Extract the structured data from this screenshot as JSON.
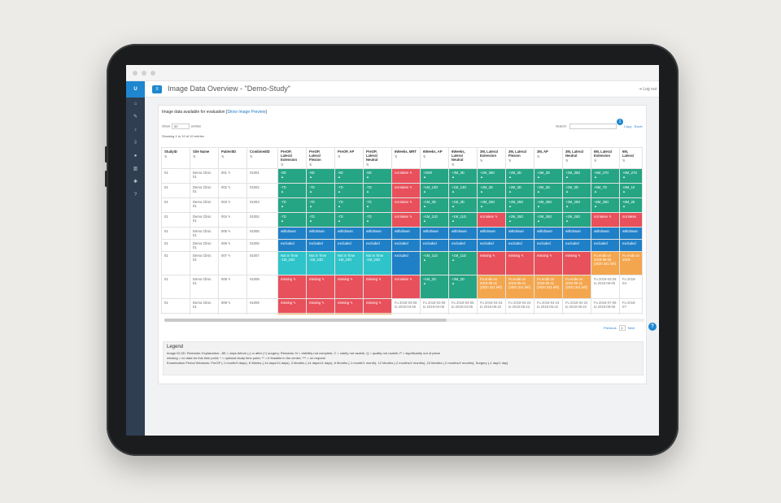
{
  "app": {
    "sidebar_brand": "U",
    "sidebar_icons": [
      "home-icon",
      "edit-icon",
      "bell-icon",
      "download-icon",
      "user-icon",
      "trash-icon",
      "settings-icon",
      "question-icon"
    ],
    "page_title": "Image Data Overview - \"Demo-Study\"",
    "logout_label": "Log out"
  },
  "card": {
    "heading": "Image data available for evaluation [",
    "heading_link": "Show Image Preview",
    "heading_end": "]",
    "show_label": "Show",
    "show_value": "50",
    "entries_label": "entries",
    "info": "Showing 1 to 10 of 10 entries",
    "search_label": "Search:",
    "export_copy": "Copy",
    "export_excel": "Excel",
    "badge": "1"
  },
  "table": {
    "columns": [
      "StudyID",
      "Site Name",
      "PatientID",
      "CombinedID",
      "PreOP, Lateral Extension",
      "PreOP, Lateral Flexion",
      "PreOP, AP",
      "PreOP, Lateral Neutral",
      "6Weeks, MRT",
      "6Weeks, AP",
      "6Weeks, Lateral Neutral",
      "3M, Lateral Extension",
      "3M, Lateral Flexion",
      "3M, AP",
      "3M, Lateral Neutral",
      "6M, Lateral Extension",
      "6M, Lateral"
    ],
    "rows": [
      {
        "study": "01",
        "site": "Demo Clinic 01",
        "patient": "001 ✎",
        "combined": "01001",
        "cells": [
          [
            "c-green",
            "-8D"
          ],
          [
            "c-green",
            "-8D"
          ],
          [
            "c-green",
            "-8D"
          ],
          [
            "c-green",
            "-8D"
          ],
          [
            "c-red",
            "not taken ✎"
          ],
          [
            "c-green",
            "+2W0"
          ],
          [
            "c-green",
            "+3M_3D"
          ],
          [
            "c-green",
            "+2M_36D"
          ],
          [
            "c-green",
            "+2M_3D"
          ],
          [
            "c-green",
            "+3M_3D"
          ],
          [
            "c-green",
            "+2M_36D"
          ],
          [
            "c-green",
            "+6M_27D"
          ],
          [
            "c-green",
            "+6M_27D"
          ]
        ]
      },
      {
        "study": "01",
        "site": "Demo Clinic 01",
        "patient": "002 ✎",
        "combined": "01002",
        "cells": [
          [
            "c-green",
            "-7D"
          ],
          [
            "c-green",
            "-7D"
          ],
          [
            "c-green",
            "-7D"
          ],
          [
            "c-green",
            "-7D"
          ],
          [
            "c-red",
            "not taken ✎"
          ],
          [
            "c-green",
            "+1M_13D"
          ],
          [
            "c-green",
            "+1M_13D"
          ],
          [
            "c-green",
            "+2M_3D"
          ],
          [
            "c-green",
            "+2M_3D"
          ],
          [
            "c-green",
            "+2M_3D"
          ],
          [
            "c-green",
            "+2M_3D"
          ],
          [
            "c-green",
            "+6M_7D"
          ],
          [
            "c-green",
            "+6M_10"
          ]
        ]
      },
      {
        "study": "01",
        "site": "Demo Clinic 01",
        "patient": "003 ✎",
        "combined": "01003",
        "cells": [
          [
            "c-green",
            "-7D"
          ],
          [
            "c-green",
            "-7D"
          ],
          [
            "c-green",
            "-7D"
          ],
          [
            "c-green",
            "-7D"
          ],
          [
            "c-red",
            "not taken ✎"
          ],
          [
            "c-green",
            "+1M_3D"
          ],
          [
            "c-green",
            "+1M_3D"
          ],
          [
            "c-green",
            "+2M_25D"
          ],
          [
            "c-green",
            "+2M_25D"
          ],
          [
            "c-green",
            "+2M_25D"
          ],
          [
            "c-green",
            "+2M_25D"
          ],
          [
            "c-green",
            "+6M_26D"
          ],
          [
            "c-green",
            "+6M_26"
          ]
        ]
      },
      {
        "study": "01",
        "site": "Demo Clinic 01",
        "patient": "004 ✎",
        "combined": "01004",
        "cells": [
          [
            "c-green",
            "-7D"
          ],
          [
            "c-green",
            "-7D"
          ],
          [
            "c-green",
            "-7D"
          ],
          [
            "c-green",
            "-7D"
          ],
          [
            "c-red",
            "not taken ✎"
          ],
          [
            "c-green",
            "+1M_11D"
          ],
          [
            "c-green",
            "+1M_11D"
          ],
          [
            "c-red",
            "not taken ✎"
          ],
          [
            "c-green",
            "+2M_25D"
          ],
          [
            "c-green",
            "+2M_25D"
          ],
          [
            "c-green",
            "+2M_25D"
          ],
          [
            "c-red",
            "not taken ✎"
          ],
          [
            "c-red",
            "not taken"
          ]
        ]
      },
      {
        "study": "01",
        "site": "Demo Clinic 01",
        "patient": "005 ✎",
        "combined": "01005",
        "cells": [
          [
            "c-blue",
            "withdrawn"
          ],
          [
            "c-blue",
            "withdrawn"
          ],
          [
            "c-blue",
            "withdrawn"
          ],
          [
            "c-blue",
            "withdrawn"
          ],
          [
            "c-blue",
            "withdrawn"
          ],
          [
            "c-blue",
            "withdrawn"
          ],
          [
            "c-blue",
            "withdrawn"
          ],
          [
            "c-blue",
            "withdrawn"
          ],
          [
            "c-blue",
            "withdrawn"
          ],
          [
            "c-blue",
            "withdrawn"
          ],
          [
            "c-blue",
            "withdrawn"
          ],
          [
            "c-blue",
            "withdrawn"
          ],
          [
            "c-blue",
            "withdrawn"
          ]
        ]
      },
      {
        "study": "01",
        "site": "Demo Clinic 01",
        "patient": "006 ✎",
        "combined": "01006",
        "cells": [
          [
            "c-blue",
            "excluded"
          ],
          [
            "c-blue",
            "excluded"
          ],
          [
            "c-blue",
            "excluded"
          ],
          [
            "c-blue",
            "excluded"
          ],
          [
            "c-blue",
            "excluded"
          ],
          [
            "c-blue",
            "excluded"
          ],
          [
            "c-blue",
            "excluded"
          ],
          [
            "c-blue",
            "excluded"
          ],
          [
            "c-blue",
            "excluded"
          ],
          [
            "c-blue",
            "excluded"
          ],
          [
            "c-blue",
            "excluded"
          ],
          [
            "c-blue",
            "excluded"
          ],
          [
            "c-blue",
            "excluded"
          ]
        ]
      },
      {
        "study": "01",
        "site": "Demo Clinic 01",
        "patient": "007 ✎",
        "combined": "01007",
        "cells": [
          [
            "c-cyan",
            "Not in Time -1M_24D"
          ],
          [
            "c-cyan",
            "Not in Time -1M_24D"
          ],
          [
            "c-cyan",
            "Not in Time -1M_24D"
          ],
          [
            "c-cyan",
            "Not in Time -1M_24D"
          ],
          [
            "c-blue",
            "excluded"
          ],
          [
            "c-green",
            "+1M_11D"
          ],
          [
            "c-green",
            "+1M_11D"
          ],
          [
            "c-red",
            "missing ✎"
          ],
          [
            "c-red",
            "missing ✎"
          ],
          [
            "c-red",
            "missing ✎"
          ],
          [
            "c-red",
            "missing ✎"
          ],
          [
            "c-orange",
            "Fu ends on 2019-06-06 (2020 341 left)"
          ],
          [
            "c-orange",
            "Fu ends on 2019-"
          ]
        ]
      },
      {
        "study": "01",
        "site": "Demo Clinic 01",
        "patient": "008 ✎",
        "combined": "01008",
        "cells": [
          [
            "c-red",
            "missing ✎"
          ],
          [
            "c-red",
            "missing ✎"
          ],
          [
            "c-red",
            "missing ✎"
          ],
          [
            "c-red",
            "missing ✎"
          ],
          [
            "c-red",
            "not taken ✎"
          ],
          [
            "c-green",
            "+1M_2D"
          ],
          [
            "c-green",
            "+3M_2D"
          ],
          [
            "c-orange",
            "Fu ends on 2019-05-11 (2020 341 left)"
          ],
          [
            "c-orange",
            "Fu ends on 2019-05-11 (2020 341 left)"
          ],
          [
            "c-orange",
            "Fu ends on 2019-05-11 (2020 341 left)"
          ],
          [
            "c-orange",
            "Fu ends on 2019-05-11 (2020 341 left)"
          ],
          [
            "c-white",
            "Fu 2019-03-28 to 2019-06-06"
          ],
          [
            "c-white",
            "Fu 2019-03-"
          ]
        ]
      },
      {
        "study": "01",
        "site": "Demo Clinic 01",
        "patient": "009 ✎",
        "combined": "01009",
        "cells": [
          [
            "c-red",
            "missing ✎"
          ],
          [
            "c-red",
            "missing ✎"
          ],
          [
            "c-red",
            "missing ✎"
          ],
          [
            "c-red",
            "missing ✎"
          ],
          [
            "c-white",
            "Fu 2019-03-08 to 2019-04-05"
          ],
          [
            "c-white",
            "Fu 2019-03-08 to 2019-04-05"
          ],
          [
            "c-white",
            "Fu 2019-03-08 to 2019-04-05"
          ],
          [
            "c-white",
            "Fu 2019-04-24 to 2019-05-22"
          ],
          [
            "c-white",
            "Fu 2019-04-24 to 2019-05-22"
          ],
          [
            "c-white",
            "Fu 2019-04-24 to 2019-05-22"
          ],
          [
            "c-white",
            "Fu 2019-04-24 to 2019-05-22"
          ],
          [
            "c-white",
            "Fu 2019-07-08 to 2019-08-06"
          ],
          [
            "c-white",
            "Fu 2019-07-"
          ]
        ]
      },
      {
        "study": "01",
        "site": "Demo Clinic 01",
        "patient": "010 ✎",
        "combined": "01010",
        "cells": [
          [
            "c-orange",
            "Fu ends on 2019-01-31 (2020 341 left)"
          ],
          [
            "c-orange",
            "Fu ends on 2019-01-31 (2020 341 left)"
          ],
          [
            "c-orange",
            "Fu ends on 2019-01-31 (2020 341 left)"
          ],
          [
            "c-orange",
            "Fu ends on 2019-01-31 (2020 341 left)"
          ],
          [
            "c-white",
            "Fu 2019-03-28 to 2019-04-25"
          ],
          [
            "c-white",
            "Fu 2019-03-28 to 2019-04-25"
          ],
          [
            "c-white",
            "Fu 2019-03-28 to 2019-04-25"
          ],
          [
            "c-white",
            "Fu 2019-05-14 to 2019-06-11"
          ],
          [
            "c-white",
            "Fu 2019-05-14 to 2019-06-11"
          ],
          [
            "c-white",
            "Fu 2019-05-14 to 2019-06-11"
          ],
          [
            "c-white",
            "Fu 2019-05-14 to 2019-06-11"
          ],
          [
            "c-white",
            "Fu 2019-07-28 to 2019-08-25"
          ],
          [
            "c-white",
            "Fu 2019-07-"
          ]
        ]
      }
    ]
  },
  "pager": {
    "previous": "Previous",
    "page": "1",
    "next": "Next"
  },
  "legend": {
    "title": "Legend",
    "line1": "Image ID-0D: Remarks: Explanation: -8D = days before (-) or after (+) surgery; Remarks: N = visibility not complete; C = clarity not usable; Q = quality not usable; P = significantly out of plane",
    "line2": "missing = no data for this time point; * = optional study time point; ** = if feasible in the centre; *** = on request",
    "line3": "Examination Period Windows: PreOP (-1 month/0 days), 6 Weeks (-14 days/14 days), 3 Months (-14 days/14 days), 6 Months (-1 month/1 month), 12 Months (-2 months/2 months), 24 Months (-2 months/2 months), Surgery (-1 day/1 day)"
  },
  "help_label": "?"
}
